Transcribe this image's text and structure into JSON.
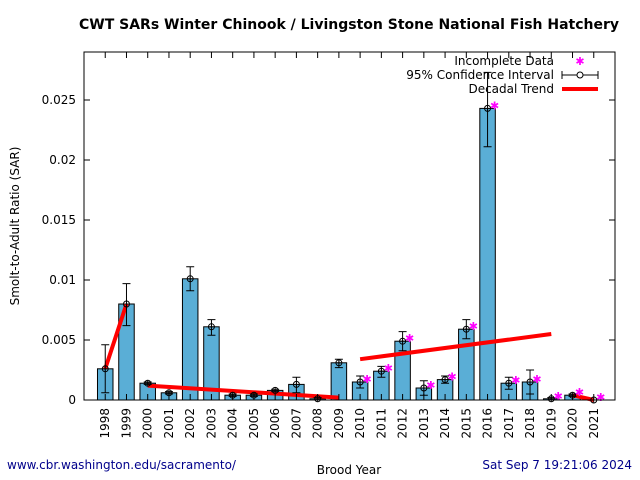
{
  "chart_data": {
    "type": "bar",
    "title": "CWT SARs Winter Chinook  / Livingston Stone National Fish Hatchery",
    "xlabel": "Brood Year",
    "ylabel": "Smolt-to-Adult Ratio (SAR)",
    "ylim": [
      0,
      0.029
    ],
    "xlim": [
      1997,
      2022
    ],
    "yticks": [
      "0",
      "0.005",
      "0.01",
      "0.015",
      "0.02",
      "0.025"
    ],
    "ytick_values": [
      0,
      0.005,
      0.01,
      0.015,
      0.02,
      0.025
    ],
    "categories": [
      "1998",
      "1999",
      "2000",
      "2001",
      "2002",
      "2003",
      "2004",
      "2005",
      "2006",
      "2007",
      "2008",
      "2009",
      "2010",
      "2011",
      "2012",
      "2013",
      "2014",
      "2015",
      "2016",
      "2017",
      "2018",
      "2019",
      "2020",
      "2021"
    ],
    "values": [
      0.0026,
      0.008,
      0.0014,
      0.0006,
      0.0101,
      0.0061,
      0.0004,
      0.0004,
      0.0008,
      0.0013,
      0.0001,
      0.0031,
      0.0015,
      0.0024,
      0.0049,
      0.001,
      0.0017,
      0.0059,
      0.0243,
      0.0014,
      0.0015,
      0.0001,
      0.0004,
      0.0
    ],
    "ci_low": [
      0.0006,
      0.0062,
      0.0013,
      0.0005,
      0.0091,
      0.0054,
      0.0003,
      0.0003,
      0.0007,
      0.0006,
      0.0,
      0.0027,
      0.001,
      0.0019,
      0.0041,
      0.0004,
      0.0014,
      0.0051,
      0.0211,
      0.0009,
      0.0005,
      0.0,
      0.0003,
      0.0
    ],
    "ci_high": [
      0.0046,
      0.0097,
      0.0015,
      0.0007,
      0.0111,
      0.0067,
      0.0005,
      0.0005,
      0.0009,
      0.0019,
      0.0002,
      0.0034,
      0.002,
      0.0028,
      0.0057,
      0.0016,
      0.002,
      0.0067,
      0.0273,
      0.0019,
      0.0025,
      0.0002,
      0.0005,
      0.0
    ],
    "incomplete": [
      "2010",
      "2011",
      "2012",
      "2013",
      "2014",
      "2015",
      "2016",
      "2017",
      "2018",
      "2019",
      "2020",
      "2021"
    ],
    "trends": [
      {
        "x": [
          1998,
          1999
        ],
        "y": [
          0.0026,
          0.008
        ]
      },
      {
        "x": [
          2000,
          2009
        ],
        "y": [
          0.0012,
          0.0002
        ]
      },
      {
        "x": [
          2010,
          2019
        ],
        "y": [
          0.0034,
          0.0055
        ]
      },
      {
        "x": [
          2020,
          2021
        ],
        "y": [
          0.0004,
          0.0
        ]
      }
    ],
    "legend": {
      "position": "top-right",
      "entries": [
        "Incomplete Data",
        "95% Confidence Interval",
        "Decadal Trend"
      ]
    },
    "colors": {
      "bar": "#5aaed6",
      "trend": "#ff0000",
      "incomplete": "#ff00ff",
      "footer": "#00008b"
    },
    "grid": false
  },
  "footer": {
    "url": "www.cbr.washington.edu/sacramento/",
    "timestamp": "Sat Sep  7 19:21:06 2024"
  }
}
